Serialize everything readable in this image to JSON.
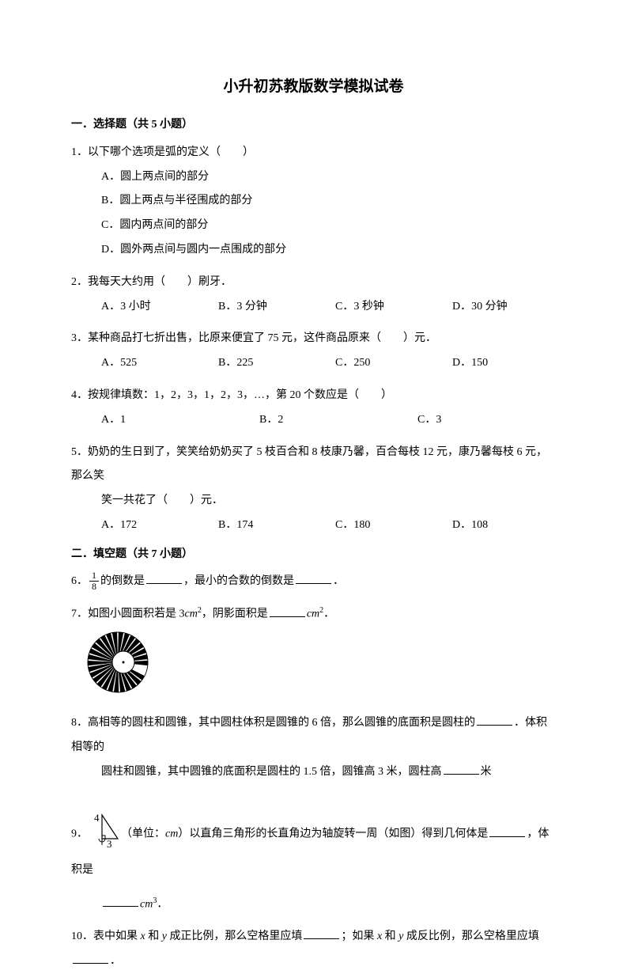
{
  "title": "小升初苏教版数学模拟试卷",
  "section1": {
    "header": "一．选择题（共 5 小题）",
    "q1": {
      "num": "1．",
      "text": "以下哪个选项是弧的定义（　　）",
      "optA": "A．圆上两点间的部分",
      "optB": "B．圆上两点与半径围成的部分",
      "optC": "C．圆内两点间的部分",
      "optD": "D．圆外两点间与圆内一点围成的部分"
    },
    "q2": {
      "num": "2．",
      "text": "我每天大约用（　　）刷牙．",
      "optA": "A．3 小时",
      "optB": "B．3 分钟",
      "optC": "C．3 秒钟",
      "optD": "D．30 分钟"
    },
    "q3": {
      "num": "3．",
      "text": "某种商品打七折出售，比原来便宜了 75 元，这件商品原来（　　）元．",
      "optA": "A．525",
      "optB": "B．225",
      "optC": "C．250",
      "optD": "D．150"
    },
    "q4": {
      "num": "4．",
      "text": "按规律填数：1，2，3，1，2，3，…，第 20 个数应是（　　）",
      "optA": "A．1",
      "optB": "B．2",
      "optC": "C．3"
    },
    "q5": {
      "num": "5．",
      "text": "奶奶的生日到了，笑笑给奶奶买了 5 枝百合和 8 枝康乃馨，百合每枝 12 元，康乃馨每枝 6 元，那么笑",
      "text2": "笑一共花了（　　）元．",
      "optA": "A．172",
      "optB": "B．174",
      "optC": "C．180",
      "optD": "D．108"
    }
  },
  "section2": {
    "header": "二．填空题（共 7 小题）",
    "q6": {
      "num": "6．",
      "frac_num": "1",
      "frac_den": "8",
      "text1": "的倒数是",
      "text2": "，最小的合数的倒数是",
      "text3": "．"
    },
    "q7": {
      "num": "7．",
      "text1": "如图小圆面积若是 3",
      "unit1": "cm",
      "text2": "，阴影面积是",
      "unit2": "cm",
      "text3": "．"
    },
    "q8": {
      "num": "8．",
      "text1": "高相等的圆柱和圆锥，其中圆柱体积是圆锥的 6 倍，那么圆锥的底面积是圆柱的",
      "text2": "．体积相等的",
      "text3": "圆柱和圆锥，其中圆锥的底面积是圆柱的 1.5 倍，圆锥高 3 米，圆柱高",
      "text4": "米"
    },
    "q9": {
      "num": "9．",
      "label4": "4",
      "label3": "3",
      "text1": "（单位：",
      "unit": "cm",
      "text2": "）以直角三角形的长直角边为轴旋转一周（如图）得到几何体是",
      "text3": "，体积是",
      "unit2": "cm",
      "text4": "．"
    },
    "q10": {
      "num": "10．",
      "text1": "表中如果 ",
      "x": "x",
      "text2": " 和 ",
      "y": "y",
      "text3": " 成正比例，那么空格里应填",
      "text4": "；如果 ",
      "text5": " 成反比例，那么空格里应填",
      "text6": "．"
    }
  },
  "figure": {
    "circle": {
      "outer_radius": 38,
      "inner_radius": 15,
      "segments": 28,
      "fill_color": "#000000",
      "bg_color": "#ffffff"
    },
    "triangle": {
      "width": 30,
      "height": 38
    }
  }
}
